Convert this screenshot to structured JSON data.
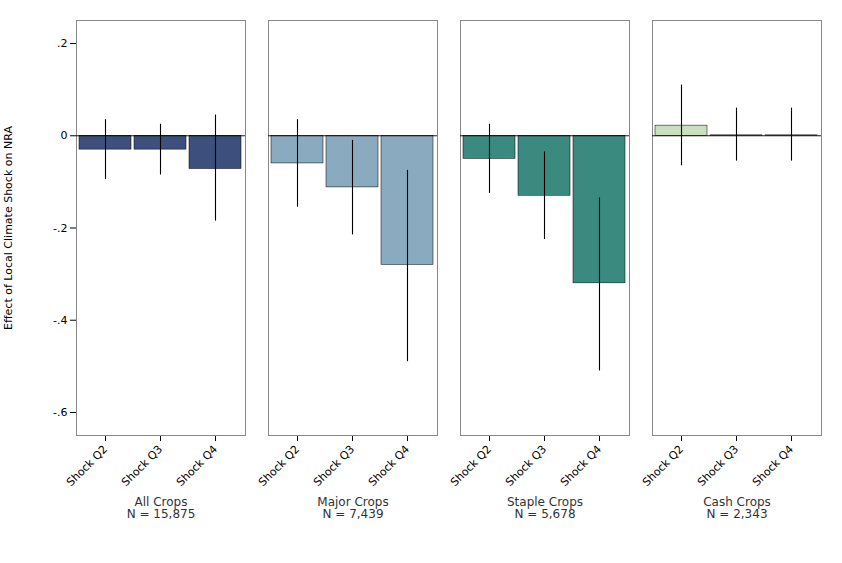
{
  "chart_data": {
    "type": "bar",
    "categories": [
      "All Crops\nN = 15,875",
      "Major Crops\nN = 7,439",
      "Staple Crops\nN = 5,678",
      "Cash Crops\nN = 2,343"
    ],
    "series": [
      {
        "name": "Shock Q2",
        "values": [
          -0.03,
          -0.06,
          -0.05,
          0.022
        ],
        "error_lower": [
          -0.095,
          -0.155,
          -0.125,
          -0.065
        ],
        "error_upper": [
          0.035,
          0.035,
          0.025,
          0.11
        ]
      },
      {
        "name": "Shock Q3",
        "values": [
          -0.03,
          -0.112,
          -0.13,
          0.001
        ],
        "error_lower": [
          -0.085,
          -0.215,
          -0.225,
          -0.055
        ],
        "error_upper": [
          0.025,
          -0.01,
          -0.035,
          0.06
        ]
      },
      {
        "name": "Shock Q4",
        "values": [
          -0.072,
          -0.28,
          -0.32,
          0.001
        ],
        "error_lower": [
          -0.185,
          -0.49,
          -0.51,
          -0.055
        ],
        "error_upper": [
          0.045,
          -0.075,
          -0.135,
          0.06
        ]
      }
    ],
    "colors": [
      "#3d4f7c",
      "#8aaabf",
      "#3a8a80",
      "#c8dfc0"
    ],
    "ylabel": "Effect of Local Climate Shock on NRA",
    "ylim": [
      -0.65,
      0.25
    ],
    "yticks": [
      {
        "value": -0.6,
        "label": "-.6"
      },
      {
        "value": -0.4,
        "label": "-.4"
      },
      {
        "value": -0.2,
        "label": "-.2"
      },
      0,
      {
        "value": 0.2,
        "label": ".2"
      }
    ]
  }
}
